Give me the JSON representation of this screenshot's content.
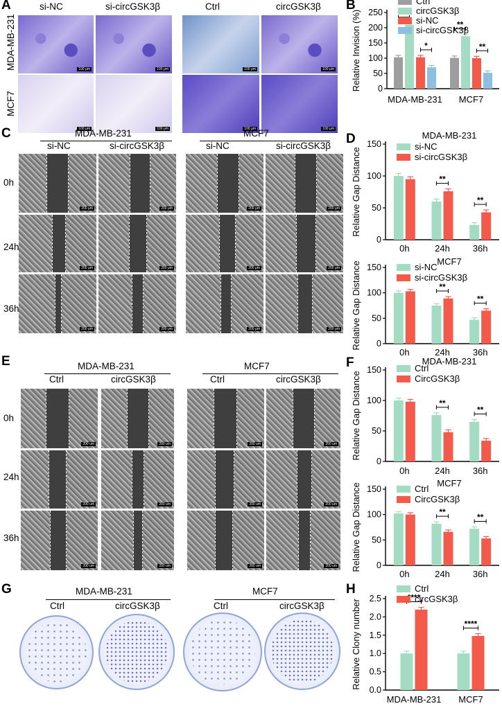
{
  "panelA": {
    "letter": "A",
    "left_cols": [
      "si-NC",
      "si-circGSK3β"
    ],
    "right_cols": [
      "Ctrl",
      "circGSK3β"
    ],
    "rows": [
      "MDA-MB-231",
      "MCF7"
    ],
    "scale": "100 μm"
  },
  "panelC": {
    "letter": "C",
    "groups": [
      "MDA-MB-231",
      "MCF7"
    ],
    "cols": [
      "si-NC",
      "si-circGSK3β"
    ],
    "rows": [
      "0h",
      "24h",
      "36h"
    ],
    "scale": "200 μm"
  },
  "panelE": {
    "letter": "E",
    "groups": [
      "MDA-MB-231",
      "MCF7"
    ],
    "cols": [
      "Ctrl",
      "circGSK3β"
    ],
    "rows": [
      "0h",
      "24h",
      "36h"
    ],
    "scale": "200 um"
  },
  "panelG": {
    "letter": "G",
    "groups": [
      "MDA-MB-231",
      "MCF7"
    ],
    "cols": [
      "Ctrl",
      "circGSK3β"
    ]
  },
  "colors": {
    "gray": "#9e9e9e",
    "green": "#a3dbc3",
    "red": "#f25a4c",
    "blue": "#8fbfe0"
  },
  "chart_data": [
    {
      "id": "B",
      "letter": "B",
      "type": "bar",
      "ylabel": "Relative Invision (%)",
      "xlabel": "",
      "categories": [
        "MDA-MB-231",
        "MCF7"
      ],
      "ylim": [
        0,
        250
      ],
      "yticks": [
        0,
        50,
        100,
        150,
        200,
        250
      ],
      "series": [
        {
          "name": "Ctrl",
          "color": "#9e9e9e",
          "values": [
            103,
            101
          ]
        },
        {
          "name": "circGSK3β",
          "color": "#a3dbc3",
          "values": [
            210,
            172
          ]
        },
        {
          "name": "si-NC",
          "color": "#f25a4c",
          "values": [
            103,
            100
          ]
        },
        {
          "name": "si-circGSK3β",
          "color": "#8fbfe0",
          "values": [
            70,
            52
          ]
        }
      ],
      "significance": [
        {
          "group": 0,
          "pair": [
            0,
            1
          ],
          "label": "**"
        },
        {
          "group": 0,
          "pair": [
            2,
            3
          ],
          "label": "*"
        },
        {
          "group": 1,
          "pair": [
            0,
            1
          ],
          "label": "**"
        },
        {
          "group": 1,
          "pair": [
            2,
            3
          ],
          "label": "**"
        }
      ]
    },
    {
      "id": "D1",
      "letter": "D",
      "type": "bar",
      "title": "MDA-MB-231",
      "ylabel": "Relative Gap Distance",
      "xlabel": "",
      "categories": [
        "0h",
        "24h",
        "36h"
      ],
      "ylim": [
        0,
        150
      ],
      "yticks": [
        0,
        50,
        100,
        150
      ],
      "series": [
        {
          "name": "si-NC",
          "color": "#a3dbc3",
          "values": [
            100,
            60,
            23
          ]
        },
        {
          "name": "si-circGSK3β",
          "color": "#f25a4c",
          "values": [
            95,
            76,
            43
          ]
        }
      ],
      "significance": [
        {
          "group": 1,
          "pair": [
            0,
            1
          ],
          "label": "**"
        },
        {
          "group": 2,
          "pair": [
            0,
            1
          ],
          "label": "**"
        }
      ]
    },
    {
      "id": "D2",
      "letter": "",
      "type": "bar",
      "title": "MCF7",
      "ylabel": "Relative Gap Distance",
      "xlabel": "",
      "categories": [
        "0h",
        "24h",
        "36h"
      ],
      "ylim": [
        0,
        150
      ],
      "yticks": [
        0,
        50,
        100,
        150
      ],
      "series": [
        {
          "name": "si-NC",
          "color": "#a3dbc3",
          "values": [
            100,
            75,
            47
          ]
        },
        {
          "name": "si-circGSK3β",
          "color": "#f25a4c",
          "values": [
            103,
            89,
            65
          ]
        }
      ],
      "significance": [
        {
          "group": 1,
          "pair": [
            0,
            1
          ],
          "label": "**"
        },
        {
          "group": 2,
          "pair": [
            0,
            1
          ],
          "label": "**"
        }
      ]
    },
    {
      "id": "F1",
      "letter": "F",
      "type": "bar",
      "title": "MDA-MB-231",
      "ylabel": "Relative Gap Distance",
      "xlabel": "",
      "categories": [
        "0h",
        "24h",
        "36h"
      ],
      "ylim": [
        0,
        150
      ],
      "yticks": [
        0,
        50,
        100,
        150
      ],
      "series": [
        {
          "name": "Ctrl",
          "color": "#a3dbc3",
          "values": [
            100,
            76,
            65
          ]
        },
        {
          "name": "CircGSK3β",
          "color": "#f25a4c",
          "values": [
            98,
            48,
            34
          ]
        }
      ],
      "significance": [
        {
          "group": 1,
          "pair": [
            0,
            1
          ],
          "label": "**"
        },
        {
          "group": 2,
          "pair": [
            0,
            1
          ],
          "label": "**"
        }
      ]
    },
    {
      "id": "F2",
      "letter": "",
      "type": "bar",
      "title": "MCF7",
      "ylabel": "Relative Gap Distance",
      "xlabel": "",
      "categories": [
        "0h",
        "24h",
        "36h"
      ],
      "ylim": [
        0,
        150
      ],
      "yticks": [
        0,
        50,
        100,
        150
      ],
      "series": [
        {
          "name": "Ctrl",
          "color": "#a3dbc3",
          "values": [
            102,
            82,
            72
          ]
        },
        {
          "name": "CircGSK3β",
          "color": "#f25a4c",
          "values": [
            100,
            66,
            53
          ]
        }
      ],
      "significance": [
        {
          "group": 1,
          "pair": [
            0,
            1
          ],
          "label": "**"
        },
        {
          "group": 2,
          "pair": [
            0,
            1
          ],
          "label": "**"
        }
      ]
    },
    {
      "id": "H",
      "letter": "H",
      "type": "bar",
      "ylabel": "Relative Clony number",
      "xlabel": "",
      "categories": [
        "MDA-MB-231",
        "MCF7"
      ],
      "ylim": [
        0,
        2.5
      ],
      "yticks": [
        0.0,
        0.5,
        1.0,
        1.5,
        2.0,
        2.5
      ],
      "series": [
        {
          "name": "Ctrl",
          "color": "#a3dbc3",
          "values": [
            1.0,
            1.0
          ]
        },
        {
          "name": "circGSK3β",
          "color": "#f25a4c",
          "values": [
            2.2,
            1.48
          ]
        }
      ],
      "significance": [
        {
          "group": 0,
          "pair": [
            0,
            1
          ],
          "label": "****"
        },
        {
          "group": 1,
          "pair": [
            0,
            1
          ],
          "label": "****"
        }
      ]
    }
  ]
}
